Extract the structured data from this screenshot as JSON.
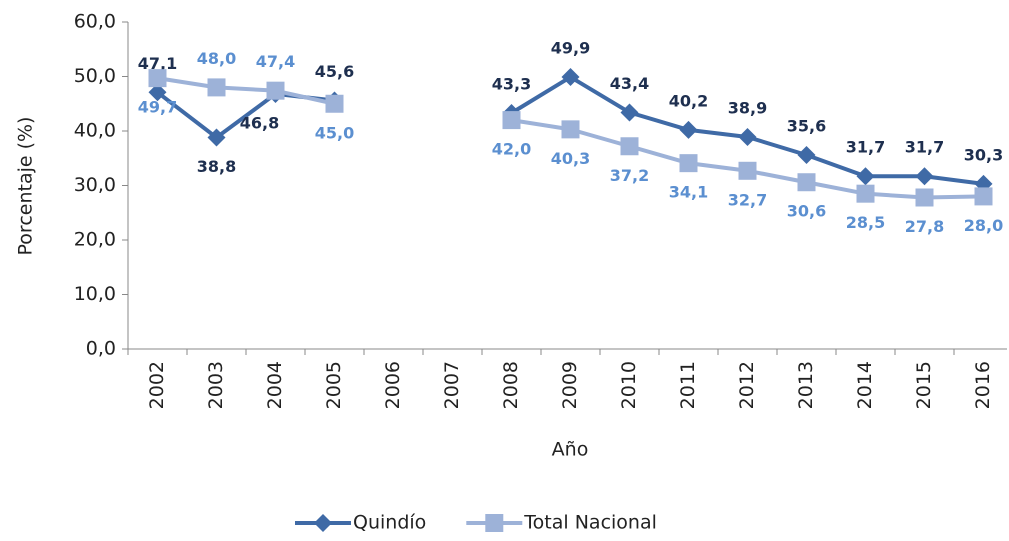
{
  "chart_data": {
    "type": "line",
    "x_label": "Año",
    "y_label": "Porcentaje (%)",
    "categories": [
      "2002",
      "2003",
      "2004",
      "2005",
      "2006",
      "2007",
      "2008",
      "2009",
      "2010",
      "2011",
      "2012",
      "2013",
      "2014",
      "2015",
      "2016"
    ],
    "series": [
      {
        "name": "Quindío",
        "color": "#3f6aa6",
        "label_color": "#1e2f4f",
        "marker": "diamond",
        "values": [
          47.1,
          38.8,
          46.8,
          45.6,
          null,
          null,
          43.3,
          49.9,
          43.4,
          40.2,
          38.9,
          35.6,
          31.7,
          31.7,
          30.3
        ],
        "value_labels": [
          "47,1",
          "38,8",
          "46,8",
          "45,6",
          null,
          null,
          "43,3",
          "49,9",
          "43,4",
          "40,2",
          "38,9",
          "35,6",
          "31,7",
          "31,7",
          "30,3"
        ]
      },
      {
        "name": "Total Nacional",
        "color": "#9db2d8",
        "label_color": "#5b8fd0",
        "marker": "square",
        "values": [
          49.7,
          48.0,
          47.4,
          45.0,
          null,
          null,
          42.0,
          40.3,
          37.2,
          34.1,
          32.7,
          30.6,
          28.5,
          27.8,
          28.0
        ],
        "value_labels": [
          "49,7",
          "48,0",
          "47,4",
          "45,0",
          null,
          null,
          "42,0",
          "40,3",
          "37,2",
          "34,1",
          "32,7",
          "30,6",
          "28,5",
          "27,8",
          "28,0"
        ]
      }
    ],
    "ylim": [
      0,
      60
    ],
    "yticks": [
      {
        "value": 0,
        "label": "0,0"
      },
      {
        "value": 10,
        "label": "10,0"
      },
      {
        "value": 20,
        "label": "20,0"
      },
      {
        "value": 30,
        "label": "30,0"
      },
      {
        "value": 40,
        "label": "40,0"
      },
      {
        "value": 50,
        "label": "50,0"
      },
      {
        "value": 60,
        "label": "60,0"
      }
    ],
    "legend": "bottom"
  }
}
